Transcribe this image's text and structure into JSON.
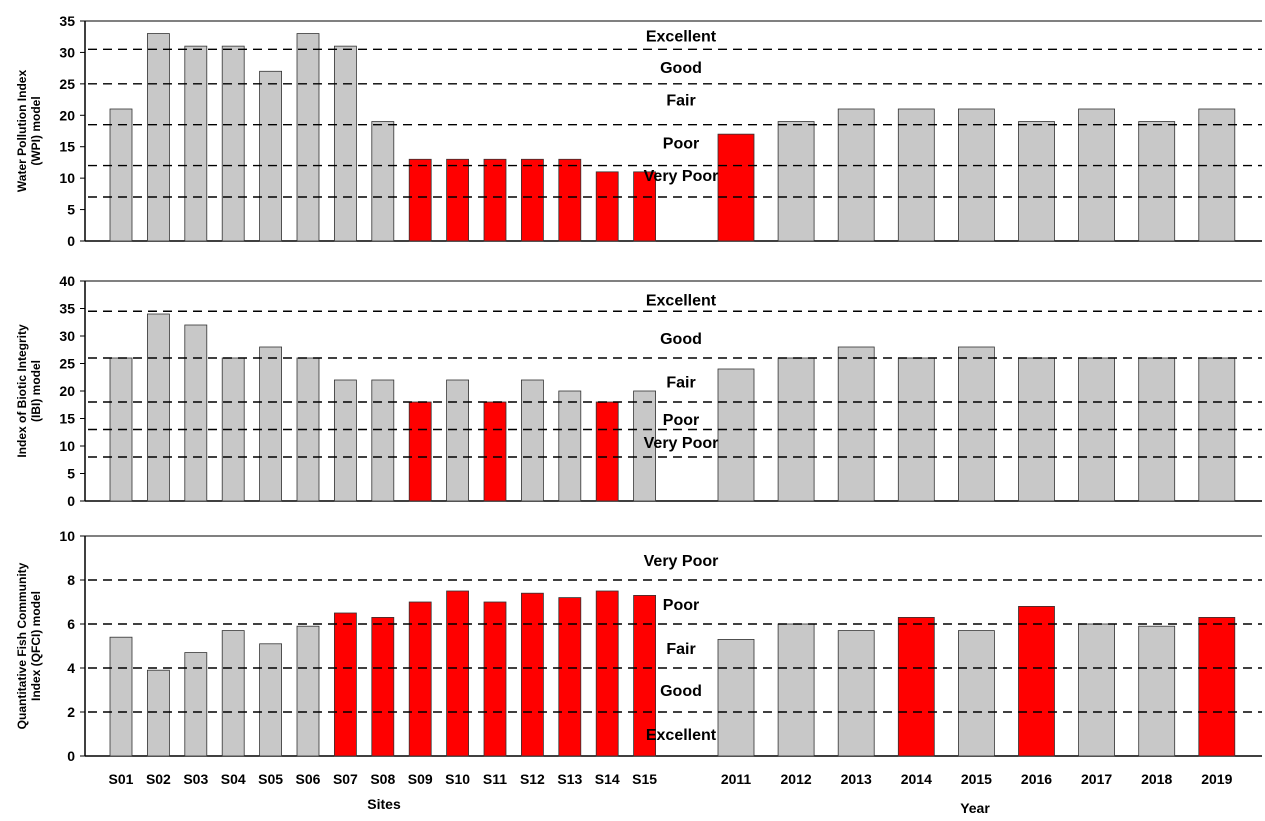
{
  "colors": {
    "normal": "#c8c8c8",
    "highlight": "#ff0000",
    "outline": "#333333",
    "dash": "#000000"
  },
  "axis_titles": {
    "sites": "Sites",
    "year": "Year"
  },
  "chart_data": [
    {
      "type": "bar",
      "ylabel": [
        "Water Pollution Index",
        "(WPI) model"
      ],
      "ylim": [
        0,
        35
      ],
      "yticks": [
        0,
        5,
        10,
        15,
        20,
        25,
        30,
        35
      ],
      "thresholds": [
        7,
        12,
        18.5,
        25,
        30.5
      ],
      "bands": [
        {
          "label": "Excellent",
          "y": 32.7
        },
        {
          "label": "Good",
          "y": 27.7
        },
        {
          "label": "Fair",
          "y": 22.5
        },
        {
          "label": "Poor",
          "y": 15.7
        },
        {
          "label": "Very Poor",
          "y": 10.5
        }
      ],
      "sites": {
        "categories": [
          "S01",
          "S02",
          "S03",
          "S04",
          "S05",
          "S06",
          "S07",
          "S08",
          "S09",
          "S10",
          "S11",
          "S12",
          "S13",
          "S14",
          "S15"
        ],
        "values": [
          21,
          33,
          31,
          31,
          27,
          33,
          31,
          19,
          13,
          13,
          13,
          13,
          13,
          11,
          11
        ],
        "highlight": [
          false,
          false,
          false,
          false,
          false,
          false,
          false,
          false,
          true,
          true,
          true,
          true,
          true,
          true,
          true
        ]
      },
      "years": {
        "categories": [
          "2011",
          "2012",
          "2013",
          "2014",
          "2015",
          "2016",
          "2017",
          "2018",
          "2019"
        ],
        "values": [
          17,
          19,
          21,
          21,
          21,
          19,
          21,
          19,
          21
        ],
        "highlight": [
          true,
          false,
          false,
          false,
          false,
          false,
          false,
          false,
          false
        ]
      }
    },
    {
      "type": "bar",
      "ylabel": [
        "Index of Biotic Integrity",
        "(IBI) model"
      ],
      "ylim": [
        0,
        40
      ],
      "yticks": [
        0,
        5,
        10,
        15,
        20,
        25,
        30,
        35,
        40
      ],
      "thresholds": [
        8,
        13,
        18,
        26,
        34.5
      ],
      "bands": [
        {
          "label": "Excellent",
          "y": 36.6
        },
        {
          "label": "Good",
          "y": 29.6
        },
        {
          "label": "Fair",
          "y": 21.7
        },
        {
          "label": "Poor",
          "y": 14.9
        },
        {
          "label": "Very Poor",
          "y": 10.7
        }
      ],
      "sites": {
        "categories": [
          "S01",
          "S02",
          "S03",
          "S04",
          "S05",
          "S06",
          "S07",
          "S08",
          "S09",
          "S10",
          "S11",
          "S12",
          "S13",
          "S14",
          "S15"
        ],
        "values": [
          26,
          34,
          32,
          26,
          28,
          26,
          22,
          22,
          18,
          22,
          18,
          22,
          20,
          18,
          20
        ],
        "highlight": [
          false,
          false,
          false,
          false,
          false,
          false,
          false,
          false,
          true,
          false,
          true,
          false,
          false,
          true,
          false
        ]
      },
      "years": {
        "categories": [
          "2011",
          "2012",
          "2013",
          "2014",
          "2015",
          "2016",
          "2017",
          "2018",
          "2019"
        ],
        "values": [
          24,
          26,
          28,
          26,
          28,
          26,
          26,
          26,
          26
        ],
        "highlight": [
          false,
          false,
          false,
          false,
          false,
          false,
          false,
          false,
          false
        ]
      }
    },
    {
      "type": "bar",
      "ylabel": [
        "Quantitative Fish Community",
        "Index (QFCI) model"
      ],
      "ylim": [
        0,
        10
      ],
      "yticks": [
        0,
        2,
        4,
        6,
        8,
        10
      ],
      "thresholds": [
        2,
        4,
        6,
        8
      ],
      "bands": [
        {
          "label": "Very Poor",
          "y": 8.9
        },
        {
          "label": "Poor",
          "y": 6.9
        },
        {
          "label": "Fair",
          "y": 4.9
        },
        {
          "label": "Good",
          "y": 3.0
        },
        {
          "label": "Excellent",
          "y": 1.0
        }
      ],
      "sites": {
        "categories": [
          "S01",
          "S02",
          "S03",
          "S04",
          "S05",
          "S06",
          "S07",
          "S08",
          "S09",
          "S10",
          "S11",
          "S12",
          "S13",
          "S14",
          "S15"
        ],
        "values": [
          5.4,
          3.9,
          4.7,
          5.7,
          5.1,
          5.9,
          6.5,
          6.3,
          7.0,
          7.5,
          7.0,
          7.4,
          7.2,
          7.5,
          7.3
        ],
        "highlight": [
          false,
          false,
          false,
          false,
          false,
          false,
          true,
          true,
          true,
          true,
          true,
          true,
          true,
          true,
          true
        ]
      },
      "years": {
        "categories": [
          "2011",
          "2012",
          "2013",
          "2014",
          "2015",
          "2016",
          "2017",
          "2018",
          "2019"
        ],
        "values": [
          5.3,
          6.0,
          5.7,
          6.3,
          5.7,
          6.8,
          6.0,
          5.9,
          6.3
        ],
        "highlight": [
          false,
          false,
          false,
          true,
          false,
          true,
          false,
          false,
          true
        ]
      }
    }
  ]
}
